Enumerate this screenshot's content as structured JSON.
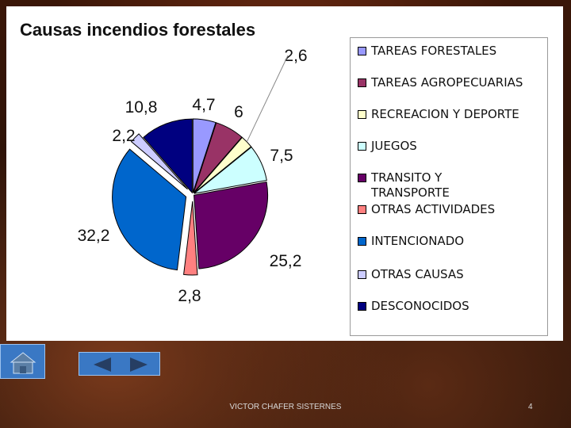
{
  "chart_data": {
    "type": "pie",
    "title": "Causas incendios forestales",
    "categories": [
      "TAREAS FORESTALES",
      "TAREAS AGROPECUARIAS",
      "RECREACION Y DEPORTE",
      "JUEGOS",
      "TRANSITO Y TRANSPORTE",
      "OTRAS ACTIVIDADES",
      "INTENCIONADO",
      "OTRAS CAUSAS",
      "DESCONOCIDOS"
    ],
    "values": [
      4.7,
      6,
      2.6,
      7.5,
      25.2,
      2.8,
      32.2,
      2.2,
      10.8
    ],
    "data_labels": [
      "4,7",
      "6",
      "2,6",
      "7,5",
      "25,2",
      "2,8",
      "32,2",
      "2,2",
      "10,8"
    ],
    "colors": [
      "#9999ff",
      "#993366",
      "#ffffcc",
      "#ccffff",
      "#660066",
      "#ff8080",
      "#0066cc",
      "#ccccff",
      "#000080"
    ],
    "exploded": [
      false,
      false,
      false,
      false,
      false,
      true,
      true,
      true,
      false
    ],
    "legend_position": "right"
  },
  "footer": {
    "author": "VICTOR CHAFER SISTERNES",
    "page_number": "4"
  },
  "navigation": {
    "home_icon": "home-icon",
    "prev_icon": "arrow-left-icon",
    "next_icon": "arrow-right-icon"
  }
}
